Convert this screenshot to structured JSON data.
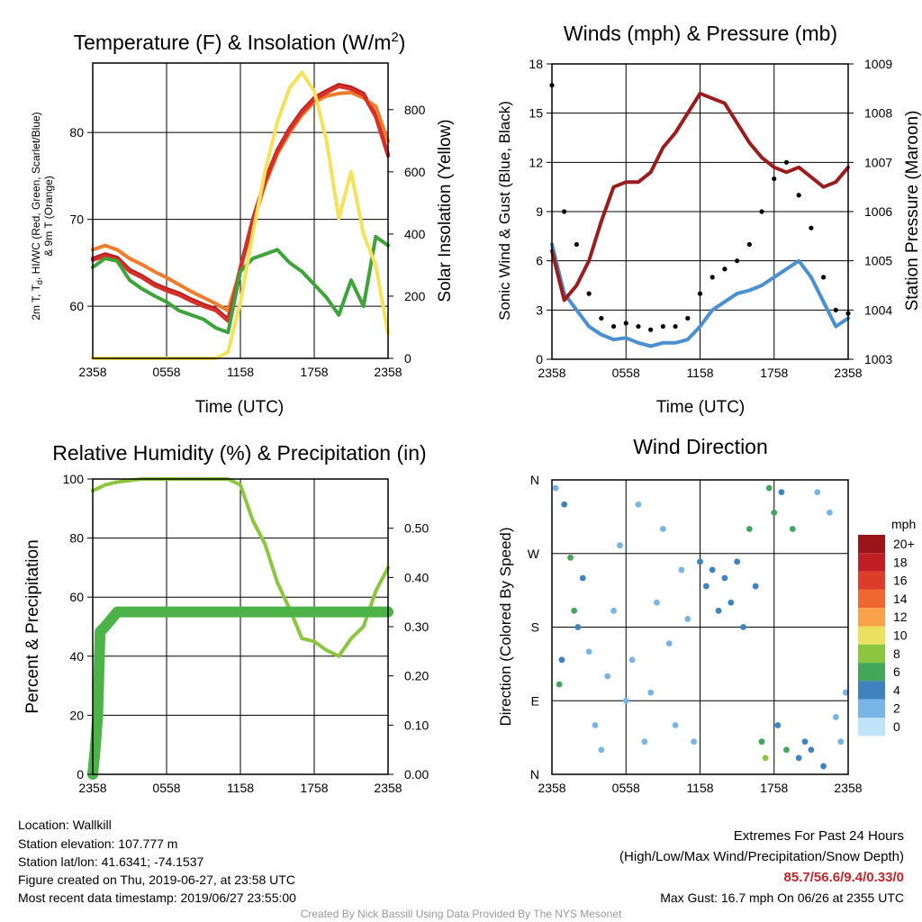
{
  "charts": {
    "temperature": {
      "title": "Temperature (F) & Insolation (W/m",
      "title_sup": "2",
      "title_close": ")",
      "xlabel": "Time (UTC)",
      "ylabel_left_line1": "2m T, T",
      "ylabel_left_sub": "d",
      "ylabel_left_rest": ", HI/WC (Red, Green, Scarlet/Blue)",
      "ylabel_left_line2": "& 9m T (Orange)",
      "ylabel_right": "Solar Insolation (Yellow)"
    },
    "winds": {
      "title": "Winds (mph) & Pressure (mb)",
      "xlabel": "Time (UTC)",
      "ylabel_left": "Sonic Wind & Gust (Blue, Black)",
      "ylabel_right": "Station Pressure (Maroon)"
    },
    "humidity": {
      "title": "Relative Humidity (%) & Precipitation (in)",
      "ylabel_left": "Percent & Precipitation"
    },
    "direction": {
      "title": "Wind Direction",
      "ylabel_left": "Direction (Colored By Speed)",
      "legend_unit": "mph"
    }
  },
  "chart_data": [
    {
      "type": "line",
      "x_ticks": [
        "2358",
        "0558",
        "1158",
        "1758",
        "2358"
      ],
      "xlim": [
        0,
        24
      ],
      "ylim_left": [
        54,
        88
      ],
      "yticks_left": [
        60,
        70,
        80
      ],
      "ylim_right": [
        0,
        950
      ],
      "yticks_right": [
        0,
        200,
        400,
        600,
        800
      ],
      "series": [
        {
          "name": "2m T",
          "color": "#b81c1c",
          "axis": "left",
          "x": [
            0,
            1,
            2,
            3,
            4,
            5,
            6,
            7,
            8,
            9,
            10,
            11,
            12,
            13,
            14,
            15,
            16,
            17,
            18,
            19,
            20,
            21,
            22,
            23,
            24
          ],
          "y": [
            65.5,
            66,
            65.6,
            64.2,
            63.5,
            62.6,
            62,
            61.5,
            60.8,
            60.2,
            59.7,
            58.5,
            64.5,
            70,
            74.5,
            78,
            80.5,
            82.5,
            84,
            84.8,
            85.5,
            85.2,
            84.5,
            82,
            77.5
          ]
        },
        {
          "name": "9m T",
          "color": "#f07c2a",
          "axis": "left",
          "x": [
            0,
            1,
            2,
            3,
            4,
            5,
            6,
            7,
            8,
            9,
            10,
            11,
            12,
            13,
            14,
            15,
            16,
            17,
            18,
            19,
            20,
            21,
            22,
            23,
            24
          ],
          "y": [
            66.5,
            67,
            66.5,
            65.5,
            64.8,
            64,
            63.3,
            62.5,
            61.7,
            61,
            60.3,
            59.5,
            64.2,
            69.5,
            74,
            77.5,
            80,
            82,
            83.5,
            84.2,
            84.5,
            84.6,
            84,
            83,
            79
          ]
        },
        {
          "name": "HI/WC",
          "color": "#d6302a",
          "axis": "left",
          "x": [
            0,
            1,
            2,
            3,
            4,
            5,
            6,
            7,
            8,
            9,
            10,
            11,
            12,
            13,
            14,
            15,
            16,
            17,
            18,
            19,
            20,
            21,
            22,
            23,
            24
          ],
          "y": [
            65.3,
            65.8,
            65.4,
            64,
            63.3,
            62.4,
            61.8,
            61.3,
            60.6,
            60,
            59.5,
            58.3,
            64.3,
            69.8,
            74.3,
            77.8,
            80.3,
            82.3,
            83.8,
            84.6,
            85.3,
            85,
            84.3,
            81.8,
            77.3
          ]
        },
        {
          "name": "Td",
          "color": "#3ea33a",
          "axis": "left",
          "x": [
            0,
            1,
            2,
            3,
            4,
            5,
            6,
            7,
            8,
            9,
            10,
            11,
            12,
            13,
            14,
            15,
            16,
            17,
            18,
            19,
            20,
            21,
            22,
            23,
            24
          ],
          "y": [
            64.5,
            65.5,
            65.2,
            63,
            62,
            61.2,
            60.5,
            59.5,
            59,
            58.5,
            57.5,
            57,
            64,
            65.5,
            66,
            66.5,
            65,
            64,
            62.5,
            61,
            59,
            63,
            60,
            68,
            67
          ]
        },
        {
          "name": "Insolation",
          "color": "#f6e15a",
          "axis": "right",
          "x": [
            0,
            1,
            2,
            3,
            4,
            5,
            6,
            7,
            8,
            9,
            10,
            11,
            12,
            13,
            14,
            15,
            16,
            17,
            18,
            19,
            20,
            21,
            22,
            23,
            24
          ],
          "y": [
            0,
            0,
            0,
            0,
            0,
            0,
            0,
            0,
            0,
            0,
            0,
            20,
            180,
            400,
            600,
            760,
            870,
            920,
            860,
            700,
            450,
            600,
            400,
            300,
            80
          ]
        }
      ]
    },
    {
      "type": "line",
      "x_ticks": [
        "2358",
        "0558",
        "1158",
        "1758",
        "2358"
      ],
      "xlim": [
        0,
        24
      ],
      "ylim_left": [
        0,
        18
      ],
      "yticks_left": [
        0,
        3,
        6,
        9,
        12,
        15,
        18
      ],
      "ylim_right": [
        1003,
        1009
      ],
      "yticks_right": [
        1003,
        1004,
        1005,
        1006,
        1007,
        1008,
        1009
      ],
      "series": [
        {
          "name": "Sonic Wind",
          "color": "#4a90d0",
          "axis": "left",
          "x": [
            0,
            1,
            2,
            3,
            4,
            5,
            6,
            7,
            8,
            9,
            10,
            11,
            12,
            13,
            14,
            15,
            16,
            17,
            18,
            19,
            20,
            21,
            22,
            23,
            24
          ],
          "y": [
            7,
            4,
            3,
            2,
            1.5,
            1.2,
            1.3,
            1,
            0.8,
            1,
            1,
            1.2,
            2,
            3,
            3.5,
            4,
            4.2,
            4.5,
            5,
            5.5,
            6,
            5,
            3.5,
            2,
            2.5
          ]
        },
        {
          "name": "Gust",
          "color": "#000000",
          "axis": "left",
          "x": [
            0,
            1,
            2,
            3,
            4,
            5,
            6,
            7,
            8,
            9,
            10,
            11,
            12,
            13,
            14,
            15,
            16,
            17,
            18,
            19,
            20,
            21,
            22,
            23,
            24
          ],
          "y": [
            16.7,
            9,
            7,
            4,
            2.5,
            2,
            2.2,
            2,
            1.8,
            2,
            2,
            2.5,
            4,
            5,
            5.5,
            6,
            7,
            9,
            11,
            12,
            10,
            8,
            5,
            3,
            2.8
          ]
        },
        {
          "name": "Pressure",
          "color": "#9b1c1c",
          "axis": "right",
          "x": [
            0,
            1,
            2,
            3,
            4,
            5,
            6,
            7,
            8,
            9,
            10,
            11,
            12,
            13,
            14,
            15,
            16,
            17,
            18,
            19,
            20,
            21,
            22,
            23,
            24
          ],
          "y": [
            1005.2,
            1004.2,
            1004.5,
            1005,
            1005.8,
            1006.5,
            1006.6,
            1006.6,
            1006.8,
            1007.3,
            1007.6,
            1008.0,
            1008.4,
            1008.3,
            1008.2,
            1007.8,
            1007.4,
            1007.1,
            1006.9,
            1006.8,
            1006.9,
            1006.7,
            1006.5,
            1006.6,
            1006.9
          ]
        }
      ]
    },
    {
      "type": "line",
      "x_ticks": [
        "2358",
        "0558",
        "1158",
        "1758",
        "2358"
      ],
      "xlim": [
        0,
        24
      ],
      "ylim_left": [
        0,
        100
      ],
      "yticks_left": [
        0,
        20,
        40,
        60,
        80,
        100
      ],
      "ylim_right": [
        0,
        0.6
      ],
      "yticks_right": [
        "0.00",
        "0.10",
        "0.20",
        "0.30",
        "0.40",
        "0.50"
      ],
      "series": [
        {
          "name": "Relative Humidity",
          "color": "#8cc63f",
          "axis": "left",
          "x": [
            0,
            0.5,
            1,
            2,
            3,
            4,
            5,
            6,
            7,
            8,
            9,
            10,
            11,
            12,
            13,
            14,
            15,
            16,
            17,
            18,
            19,
            20,
            21,
            22,
            23,
            24
          ],
          "y": [
            96,
            97,
            98,
            99,
            99.5,
            100,
            100,
            100,
            100,
            100,
            100,
            100,
            100,
            98,
            86,
            78,
            65,
            56,
            46,
            45,
            42,
            40,
            46,
            50,
            62,
            70
          ]
        },
        {
          "name": "Precipitation",
          "color": "#4db348",
          "axis": "right",
          "x": [
            0,
            0.2,
            0.4,
            0.6,
            1,
            2,
            6,
            12,
            18,
            24
          ],
          "y": [
            0,
            0.05,
            0.12,
            0.29,
            0.3,
            0.33,
            0.33,
            0.33,
            0.33,
            0.33
          ]
        }
      ]
    },
    {
      "type": "scatter",
      "x_ticks": [
        "2358",
        "0558",
        "1158",
        "1758",
        "2358"
      ],
      "xlim": [
        0,
        24
      ],
      "yticks_left": [
        "N",
        "E",
        "S",
        "W",
        "N"
      ],
      "ylim_left": [
        0,
        360
      ],
      "legend_labels": [
        "20+",
        "18",
        "16",
        "14",
        "12",
        "10",
        "8",
        "6",
        "4",
        "2",
        "0"
      ],
      "legend_colors": [
        "#99151a",
        "#c01f25",
        "#dc3d2b",
        "#f0662f",
        "#f9a24a",
        "#ece15e",
        "#8cc63f",
        "#43a65a",
        "#3e82bf",
        "#78b5e5",
        "#bfe3f7"
      ],
      "points": [
        {
          "x": 0.3,
          "dir": 350,
          "speed": 2
        },
        {
          "x": 0.6,
          "dir": 110,
          "speed": 6
        },
        {
          "x": 0.8,
          "dir": 140,
          "speed": 4
        },
        {
          "x": 1.0,
          "dir": 330,
          "speed": 3
        },
        {
          "x": 1.5,
          "dir": 265,
          "speed": 6
        },
        {
          "x": 1.8,
          "dir": 200,
          "speed": 5
        },
        {
          "x": 2.1,
          "dir": 180,
          "speed": 4
        },
        {
          "x": 2.5,
          "dir": 240,
          "speed": 3
        },
        {
          "x": 3.0,
          "dir": 150,
          "speed": 2
        },
        {
          "x": 3.5,
          "dir": 60,
          "speed": 1
        },
        {
          "x": 4.0,
          "dir": 30,
          "speed": 1
        },
        {
          "x": 4.5,
          "dir": 120,
          "speed": 2
        },
        {
          "x": 5.0,
          "dir": 200,
          "speed": 1
        },
        {
          "x": 5.5,
          "dir": 280,
          "speed": 1
        },
        {
          "x": 6.0,
          "dir": 90,
          "speed": 2
        },
        {
          "x": 6.5,
          "dir": 140,
          "speed": 1
        },
        {
          "x": 7.0,
          "dir": 330,
          "speed": 1
        },
        {
          "x": 7.5,
          "dir": 40,
          "speed": 2
        },
        {
          "x": 8.0,
          "dir": 100,
          "speed": 2
        },
        {
          "x": 8.5,
          "dir": 210,
          "speed": 1
        },
        {
          "x": 9.0,
          "dir": 300,
          "speed": 1
        },
        {
          "x": 9.5,
          "dir": 160,
          "speed": 1
        },
        {
          "x": 10.0,
          "dir": 60,
          "speed": 2
        },
        {
          "x": 10.5,
          "dir": 250,
          "speed": 1
        },
        {
          "x": 11.0,
          "dir": 190,
          "speed": 2
        },
        {
          "x": 11.5,
          "dir": 40,
          "speed": 1
        },
        {
          "x": 12.0,
          "dir": 260,
          "speed": 3
        },
        {
          "x": 12.5,
          "dir": 230,
          "speed": 3
        },
        {
          "x": 13.0,
          "dir": 250,
          "speed": 4
        },
        {
          "x": 13.5,
          "dir": 200,
          "speed": 3
        },
        {
          "x": 14.0,
          "dir": 240,
          "speed": 4
        },
        {
          "x": 14.5,
          "dir": 210,
          "speed": 3
        },
        {
          "x": 15.0,
          "dir": 260,
          "speed": 4
        },
        {
          "x": 15.5,
          "dir": 180,
          "speed": 4
        },
        {
          "x": 16.0,
          "dir": 300,
          "speed": 5
        },
        {
          "x": 16.5,
          "dir": 230,
          "speed": 4
        },
        {
          "x": 17.0,
          "dir": 40,
          "speed": 6
        },
        {
          "x": 17.3,
          "dir": 20,
          "speed": 7
        },
        {
          "x": 17.6,
          "dir": 350,
          "speed": 5
        },
        {
          "x": 18.0,
          "dir": 320,
          "speed": 6
        },
        {
          "x": 18.3,
          "dir": 60,
          "speed": 4
        },
        {
          "x": 18.6,
          "dir": 345,
          "speed": 4
        },
        {
          "x": 19.0,
          "dir": 30,
          "speed": 5
        },
        {
          "x": 19.5,
          "dir": 300,
          "speed": 6
        },
        {
          "x": 20.0,
          "dir": 20,
          "speed": 4
        },
        {
          "x": 20.5,
          "dir": 40,
          "speed": 4
        },
        {
          "x": 21.0,
          "dir": 30,
          "speed": 3
        },
        {
          "x": 21.5,
          "dir": 345,
          "speed": 2
        },
        {
          "x": 22.0,
          "dir": 10,
          "speed": 3
        },
        {
          "x": 22.5,
          "dir": 320,
          "speed": 2
        },
        {
          "x": 23.0,
          "dir": 70,
          "speed": 2
        },
        {
          "x": 23.4,
          "dir": 40,
          "speed": 1
        },
        {
          "x": 23.8,
          "dir": 100,
          "speed": 2
        }
      ]
    }
  ],
  "footer": {
    "location": "Location: Wallkill",
    "elevation": "Station elevation: 107.777 m",
    "latlon": "Station lat/lon: 41.6341; -74.1537",
    "created": "Figure created on Thu, 2019-06-27, at 23:58 UTC",
    "timestamp": "Most recent data timestamp: 2019/06/27 23:55:00",
    "extremes_title": "Extremes For Past 24 Hours",
    "extremes_legend": "(High/Low/Max Wind/Precipitation/Snow Depth)",
    "extremes_values": "85.7/56.6/9.4/0.33/0",
    "max_gust": "Max Gust: 16.7 mph On 06/26 at 2355 UTC",
    "credit": "Created By Nick Bassill Using Data Provided By The NYS Mesonet",
    "extremes_color": "#c0272d",
    "credit_color": "#999999"
  }
}
